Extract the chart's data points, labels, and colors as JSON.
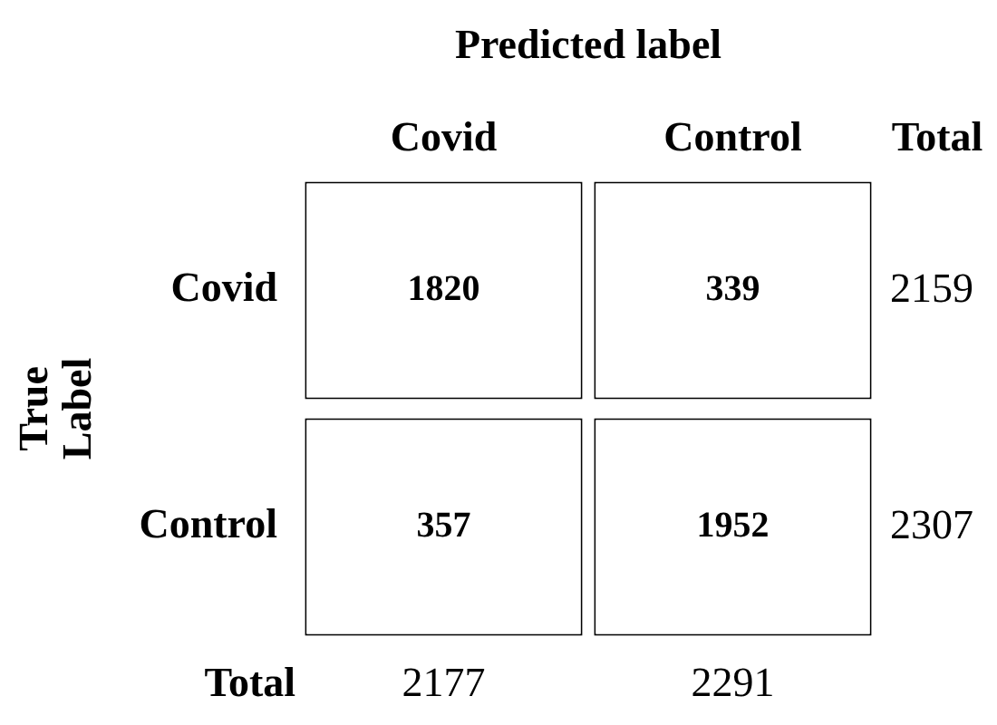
{
  "chart_data": {
    "type": "heatmap",
    "xlabel": "Predicted label",
    "ylabel": "True Label",
    "categories": [
      "Covid",
      "Control"
    ],
    "y_categories": [
      "Covid",
      "Control"
    ],
    "y2_categories": [
      "2159",
      "2307"
    ],
    "cells": [
      [
        1820,
        339
      ],
      [
        357,
        1952
      ]
    ],
    "color": "#ffffff",
    "data_labels": true,
    "totals": [
      "2177",
      "2291"
    ],
    "annotations": [
      "Total",
      "Total"
    ],
    "legend": false
  }
}
